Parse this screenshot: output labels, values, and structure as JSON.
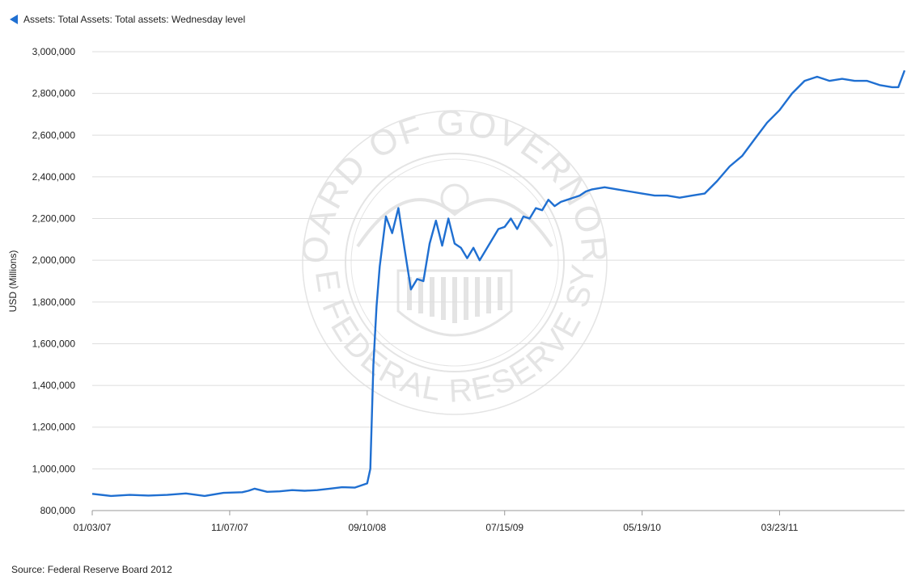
{
  "chart_data": {
    "type": "line",
    "title": "",
    "legend": {
      "entries": [
        "Assets: Total Assets: Total assets: Wednesday level"
      ],
      "placement": "top-left"
    },
    "ylabel": "USD (Millions)",
    "xlabel": "",
    "ylim": [
      800000,
      3000000
    ],
    "yticks": [
      800000,
      1000000,
      1200000,
      1400000,
      1600000,
      1800000,
      2000000,
      2200000,
      2400000,
      2600000,
      2800000,
      3000000
    ],
    "ytick_labels": [
      "800,000",
      "1,000,000",
      "1,200,000",
      "1,400,000",
      "1,600,000",
      "1,800,000",
      "2,000,000",
      "2,200,000",
      "2,400,000",
      "2,600,000",
      "2,800,000",
      "3,000,000"
    ],
    "xlim": [
      "2007-01-03",
      "2011-12-28"
    ],
    "xticks": [
      "2007-01-03",
      "2007-11-07",
      "2008-09-10",
      "2009-07-15",
      "2010-05-19",
      "2011-03-23"
    ],
    "xtick_labels": [
      "01/03/07",
      "11/07/07",
      "09/10/08",
      "07/15/09",
      "05/19/10",
      "03/23/11"
    ],
    "grid": true,
    "series": [
      {
        "name": "Assets: Total Assets: Total assets: Wednesday level",
        "color": "#1f6fd1",
        "x": [
          "2007-01-03",
          "2007-02-14",
          "2007-03-28",
          "2007-05-09",
          "2007-06-20",
          "2007-08-01",
          "2007-09-12",
          "2007-10-24",
          "2007-12-05",
          "2007-12-19",
          "2008-01-02",
          "2008-01-30",
          "2008-02-27",
          "2008-03-26",
          "2008-04-23",
          "2008-05-21",
          "2008-06-18",
          "2008-07-16",
          "2008-08-13",
          "2008-08-27",
          "2008-09-10",
          "2008-09-17",
          "2008-09-24",
          "2008-10-01",
          "2008-10-08",
          "2008-10-22",
          "2008-11-05",
          "2008-11-19",
          "2008-12-03",
          "2008-12-17",
          "2008-12-31",
          "2009-01-14",
          "2009-01-28",
          "2009-02-11",
          "2009-02-25",
          "2009-03-11",
          "2009-03-25",
          "2009-04-08",
          "2009-04-22",
          "2009-05-06",
          "2009-05-20",
          "2009-06-03",
          "2009-06-17",
          "2009-07-01",
          "2009-07-15",
          "2009-07-29",
          "2009-08-12",
          "2009-08-26",
          "2009-09-09",
          "2009-09-23",
          "2009-10-07",
          "2009-10-21",
          "2009-11-04",
          "2009-11-18",
          "2009-12-02",
          "2009-12-16",
          "2009-12-30",
          "2010-01-13",
          "2010-01-27",
          "2010-02-24",
          "2010-03-24",
          "2010-04-21",
          "2010-05-19",
          "2010-06-16",
          "2010-07-14",
          "2010-08-11",
          "2010-09-08",
          "2010-10-06",
          "2010-11-03",
          "2010-12-01",
          "2010-12-29",
          "2011-01-26",
          "2011-02-23",
          "2011-03-23",
          "2011-04-20",
          "2011-05-18",
          "2011-06-15",
          "2011-07-13",
          "2011-08-10",
          "2011-09-07",
          "2011-10-05",
          "2011-11-02",
          "2011-11-30",
          "2011-12-14",
          "2011-12-28"
        ],
        "values": [
          880000,
          870000,
          875000,
          872000,
          875000,
          882000,
          870000,
          885000,
          888000,
          895000,
          905000,
          890000,
          892000,
          898000,
          895000,
          898000,
          905000,
          912000,
          910000,
          920000,
          930000,
          1000000,
          1500000,
          1780000,
          1970000,
          2210000,
          2130000,
          2250000,
          2050000,
          1860000,
          1910000,
          1900000,
          2080000,
          2190000,
          2070000,
          2200000,
          2080000,
          2060000,
          2010000,
          2060000,
          2000000,
          2050000,
          2100000,
          2150000,
          2160000,
          2200000,
          2150000,
          2210000,
          2200000,
          2250000,
          2240000,
          2290000,
          2260000,
          2280000,
          2290000,
          2300000,
          2310000,
          2330000,
          2340000,
          2350000,
          2340000,
          2330000,
          2320000,
          2310000,
          2310000,
          2300000,
          2310000,
          2320000,
          2380000,
          2450000,
          2500000,
          2580000,
          2660000,
          2720000,
          2800000,
          2860000,
          2880000,
          2860000,
          2870000,
          2860000,
          2860000,
          2840000,
          2830000,
          2830000,
          2910000
        ]
      }
    ]
  },
  "source_text": "Source: Federal Reserve Board 2012",
  "watermark": {
    "text_top": "BOARD OF GOVERNORS",
    "text_bottom": "OF THE FEDERAL RESERVE SYSTEM",
    "color": "#e4e4e4"
  }
}
